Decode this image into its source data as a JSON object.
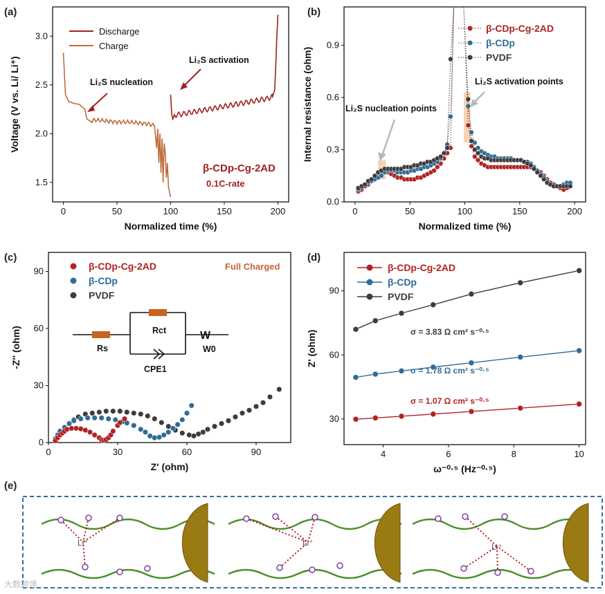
{
  "colors": {
    "red": "#b22222",
    "blue": "#2f6c98",
    "gray": "#3c3c3c",
    "charge": "#c06a3b",
    "discharge": "#a11f1f",
    "green": "#4a8f2a",
    "purple": "#7b3fa0",
    "sphere": "#9a7a12",
    "dash": "#2d6ea8",
    "highlight": "#f3c9a0"
  },
  "labels": {
    "a": "(a)",
    "b": "(b)",
    "c": "(c)",
    "d": "(d)",
    "e": "(e)"
  },
  "watermark": "大数跨境",
  "chart_data": [
    {
      "id": "a",
      "type": "line",
      "ylabel": "Voltage (V vs. Li/ Li⁺)",
      "xlabel": "Normalized time (%)",
      "xlim": [
        -10,
        210
      ],
      "ylim": [
        1.3,
        3.3
      ],
      "xticks": [
        0,
        50,
        100,
        150,
        200
      ],
      "yticks": [
        1.5,
        2.0,
        2.5,
        3.0
      ],
      "series": [
        {
          "name": "Discharge",
          "x": [
            0,
            2,
            5,
            10,
            15,
            20,
            22,
            25,
            30,
            40,
            50,
            60,
            70,
            80,
            85,
            87,
            88,
            89,
            90,
            91,
            92,
            93,
            94,
            95,
            96,
            97,
            98,
            99,
            100
          ],
          "y": [
            2.83,
            2.4,
            2.33,
            2.31,
            2.3,
            2.25,
            2.15,
            2.13,
            2.14,
            2.13,
            2.12,
            2.12,
            2.11,
            2.1,
            2.08,
            1.85,
            2.05,
            1.7,
            2.0,
            1.6,
            1.95,
            1.5,
            1.9,
            1.8,
            1.55,
            1.7,
            1.45,
            1.4,
            1.35
          ]
        },
        {
          "name": "Charge",
          "x": [
            100,
            101,
            102,
            104,
            110,
            120,
            130,
            140,
            150,
            160,
            170,
            180,
            190,
            195,
            197,
            198,
            199,
            200
          ],
          "y": [
            2.4,
            2.2,
            2.15,
            2.19,
            2.2,
            2.22,
            2.24,
            2.26,
            2.28,
            2.3,
            2.32,
            2.34,
            2.36,
            2.38,
            2.45,
            2.7,
            3.0,
            3.22
          ]
        }
      ],
      "annotations": {
        "nucleation": "Li₂S nucleation",
        "activation": "Li₂S activation",
        "sample": "β-CDp-Cg-2AD",
        "rate": "0.1C-rate"
      }
    },
    {
      "id": "b",
      "type": "scatter",
      "ylabel": "Internal resistance (ohm)",
      "xlabel": "Normalized time (%)",
      "xlim": [
        -10,
        210
      ],
      "ylim": [
        0,
        1.12
      ],
      "xticks": [
        0,
        50,
        100,
        150,
        200
      ],
      "yticks": [
        0.0,
        0.3,
        0.6,
        0.9
      ],
      "series": [
        {
          "name": "β-CDp-Cg-2AD",
          "x": [
            3,
            6,
            9,
            12,
            15,
            18,
            21,
            24,
            27,
            30,
            33,
            36,
            39,
            42,
            45,
            48,
            51,
            54,
            57,
            60,
            63,
            66,
            69,
            72,
            75,
            78,
            81,
            84,
            87,
            103,
            106,
            109,
            112,
            115,
            118,
            121,
            124,
            127,
            130,
            133,
            136,
            139,
            142,
            145,
            148,
            151,
            154,
            157,
            160,
            163,
            166,
            169,
            172,
            175,
            178,
            181,
            184,
            187,
            190,
            193,
            196
          ],
          "y": [
            0.06,
            0.07,
            0.09,
            0.1,
            0.12,
            0.14,
            0.15,
            0.16,
            0.18,
            0.17,
            0.16,
            0.15,
            0.14,
            0.14,
            0.13,
            0.13,
            0.13,
            0.13,
            0.14,
            0.14,
            0.15,
            0.16,
            0.17,
            0.18,
            0.2,
            0.22,
            0.25,
            0.28,
            0.31,
            0.44,
            0.32,
            0.26,
            0.24,
            0.22,
            0.21,
            0.2,
            0.2,
            0.2,
            0.2,
            0.2,
            0.2,
            0.2,
            0.2,
            0.2,
            0.2,
            0.2,
            0.2,
            0.2,
            0.2,
            0.19,
            0.18,
            0.17,
            0.15,
            0.13,
            0.11,
            0.1,
            0.09,
            0.08,
            0.07,
            0.08,
            0.1
          ]
        },
        {
          "name": "β-CDp",
          "x": [
            3,
            6,
            9,
            12,
            15,
            18,
            21,
            24,
            27,
            30,
            33,
            36,
            39,
            42,
            45,
            48,
            51,
            54,
            57,
            60,
            63,
            66,
            69,
            72,
            75,
            78,
            81,
            84,
            87,
            103,
            106,
            109,
            112,
            115,
            118,
            121,
            124,
            127,
            130,
            133,
            136,
            139,
            142,
            145,
            148,
            151,
            154,
            157,
            160,
            163,
            166,
            169,
            172,
            175,
            178,
            181,
            184,
            187,
            190,
            193,
            196
          ],
          "y": [
            0.07,
            0.08,
            0.1,
            0.11,
            0.12,
            0.13,
            0.14,
            0.15,
            0.17,
            0.18,
            0.18,
            0.18,
            0.17,
            0.17,
            0.17,
            0.17,
            0.18,
            0.18,
            0.19,
            0.19,
            0.2,
            0.2,
            0.21,
            0.22,
            0.23,
            0.25,
            0.28,
            0.33,
            0.49,
            0.55,
            0.4,
            0.34,
            0.31,
            0.29,
            0.28,
            0.27,
            0.26,
            0.26,
            0.25,
            0.25,
            0.25,
            0.25,
            0.25,
            0.24,
            0.24,
            0.24,
            0.23,
            0.23,
            0.22,
            0.2,
            0.18,
            0.16,
            0.14,
            0.12,
            0.1,
            0.09,
            0.09,
            0.09,
            0.1,
            0.11,
            0.11
          ]
        },
        {
          "name": "PVDF",
          "x": [
            3,
            6,
            9,
            12,
            15,
            18,
            21,
            24,
            27,
            30,
            33,
            36,
            39,
            42,
            45,
            48,
            51,
            54,
            57,
            60,
            63,
            66,
            69,
            72,
            75,
            78,
            81,
            84,
            87,
            103,
            106,
            109,
            112,
            115,
            118,
            121,
            124,
            127,
            130,
            133,
            136,
            139,
            142,
            145,
            148,
            151,
            154,
            157,
            160,
            163,
            166,
            169,
            172,
            175,
            178,
            181,
            184,
            187,
            190,
            193,
            196
          ],
          "y": [
            0.08,
            0.09,
            0.1,
            0.12,
            0.13,
            0.15,
            0.17,
            0.18,
            0.19,
            0.19,
            0.19,
            0.19,
            0.19,
            0.19,
            0.2,
            0.2,
            0.2,
            0.21,
            0.21,
            0.22,
            0.22,
            0.23,
            0.23,
            0.24,
            0.25,
            0.26,
            0.28,
            0.31,
            0.82,
            0.59,
            0.35,
            0.3,
            0.28,
            0.26,
            0.25,
            0.25,
            0.24,
            0.24,
            0.24,
            0.24,
            0.24,
            0.24,
            0.24,
            0.24,
            0.24,
            0.24,
            0.23,
            0.22,
            0.21,
            0.19,
            0.17,
            0.15,
            0.13,
            0.11,
            0.1,
            0.09,
            0.09,
            0.09,
            0.09,
            0.09,
            0.09
          ]
        }
      ],
      "annotations": {
        "nucleation": "Li₂S nucleation points",
        "activation": "Li₂S activation points"
      }
    },
    {
      "id": "c",
      "type": "scatter",
      "ylabel": "-Z'' (ohm)",
      "xlabel": "Z' (ohm)",
      "xlim": [
        0,
        105
      ],
      "ylim": [
        0,
        100
      ],
      "xticks": [
        0,
        30,
        60,
        90
      ],
      "yticks": [
        0,
        30,
        60,
        90
      ],
      "series": [
        {
          "name": "β-CDp-Cg-2AD",
          "x": [
            3,
            4,
            5,
            6,
            7,
            8,
            10,
            12,
            14,
            16,
            18,
            20,
            22,
            23,
            24,
            25,
            26,
            27,
            28,
            30,
            31,
            33
          ],
          "y": [
            1,
            2.5,
            4,
            5,
            6,
            7,
            7.5,
            7.5,
            7.2,
            6.5,
            5.5,
            4,
            2.5,
            1.5,
            1.2,
            1.6,
            2.5,
            4,
            6,
            9,
            10.5,
            12.5
          ]
        },
        {
          "name": "β-CDp",
          "x": [
            3,
            4,
            5,
            7,
            9,
            11,
            14,
            17,
            20,
            23,
            26,
            29,
            32,
            34,
            37,
            40,
            42,
            44,
            46,
            48,
            50,
            52,
            54,
            56,
            58,
            60,
            62
          ],
          "y": [
            2,
            4,
            6,
            8,
            10,
            11.5,
            12.5,
            13,
            13,
            13,
            12.5,
            12,
            11,
            10.3,
            9,
            7,
            5.5,
            3.5,
            2.5,
            2.8,
            4,
            5.5,
            7.5,
            9.5,
            12,
            15.5,
            19.5
          ]
        },
        {
          "name": "PVDF",
          "x": [
            3,
            4,
            5,
            7,
            9,
            11,
            13,
            16,
            19,
            22,
            25,
            28,
            31,
            34,
            37,
            40,
            43,
            46,
            49,
            52,
            55,
            58,
            61,
            63,
            65,
            67,
            69,
            72,
            75,
            78,
            81,
            84,
            87,
            90,
            93,
            96,
            100
          ],
          "y": [
            2,
            4,
            6,
            8,
            10,
            12,
            13.5,
            15,
            15.5,
            16,
            16.5,
            16.5,
            16.5,
            16,
            15.5,
            15,
            14,
            12.5,
            10.5,
            8.5,
            6.5,
            5,
            4,
            3.5,
            4.5,
            5.5,
            7,
            8.5,
            10,
            11.5,
            13.5,
            15.5,
            17,
            19,
            21,
            24,
            28
          ]
        }
      ],
      "annotations": {
        "state": "Full Charged",
        "rs": "Rs",
        "rct": "Rct",
        "cpe": "CPE1",
        "w": "W",
        "w0": "W0"
      }
    },
    {
      "id": "d",
      "type": "line",
      "ylabel": "Z' (ohm)",
      "xlabel": "ω⁻⁰·⁵ (Hz⁻⁰·⁵)",
      "xlim": [
        2.8,
        10.2
      ],
      "ylim": [
        18,
        108
      ],
      "xticks": [
        4,
        6,
        8,
        10
      ],
      "yticks": [
        30,
        60,
        90
      ],
      "series": [
        {
          "name": "β-CDp-Cg-2AD",
          "x": [
            3.16,
            3.76,
            4.56,
            5.53,
            6.7,
            8.2,
            10
          ],
          "y": [
            29.9,
            30.5,
            31.3,
            32.3,
            33.5,
            35.1,
            37
          ]
        },
        {
          "name": "β-CDp",
          "x": [
            3.16,
            3.76,
            4.56,
            5.53,
            6.7,
            8.2,
            10
          ],
          "y": [
            49.5,
            51,
            52.5,
            54.3,
            56.3,
            59,
            62
          ]
        },
        {
          "name": "PVDF",
          "x": [
            3.16,
            3.76,
            4.56,
            5.53,
            6.7,
            8.2,
            10
          ],
          "y": [
            72,
            76,
            79.5,
            83.5,
            88.5,
            93.8,
            99.5
          ]
        }
      ],
      "annotations": {
        "s_red": "σ = 1.07 Ω cm² s⁻⁰·⁵",
        "s_blue": "σ = 1.78 Ω cm² s⁻⁰·⁵",
        "s_gray": "σ = 3.83 Ω cm² s⁻⁰·⁵"
      }
    }
  ],
  "schematic": {
    "li_label": "Li⁺"
  }
}
